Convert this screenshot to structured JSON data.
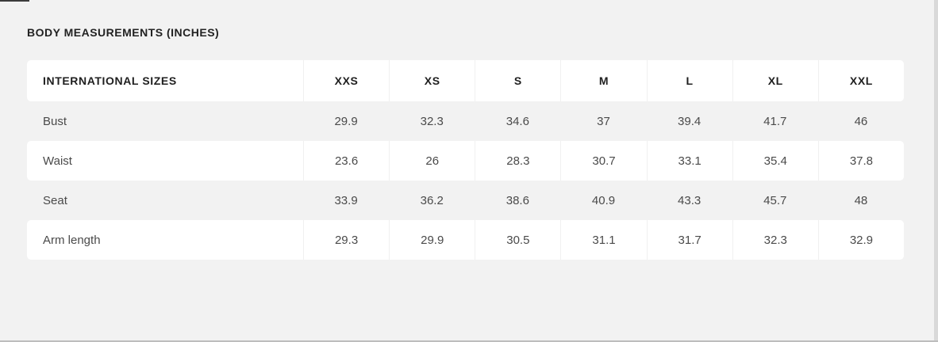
{
  "page": {
    "title": "BODY MEASUREMENTS (INCHES)"
  },
  "table": {
    "header_label": "INTERNATIONAL SIZES",
    "sizes": [
      "XXS",
      "XS",
      "S",
      "M",
      "L",
      "XL",
      "XXL"
    ],
    "rows": [
      {
        "label": "Bust",
        "values": [
          "29.9",
          "32.3",
          "34.6",
          "37",
          "39.4",
          "41.7",
          "46"
        ]
      },
      {
        "label": "Waist",
        "values": [
          "23.6",
          "26",
          "28.3",
          "30.7",
          "33.1",
          "35.4",
          "37.8"
        ]
      },
      {
        "label": "Seat",
        "values": [
          "33.9",
          "36.2",
          "38.6",
          "40.9",
          "43.3",
          "45.7",
          "48"
        ]
      },
      {
        "label": "Arm length",
        "values": [
          "29.3",
          "29.9",
          "30.5",
          "31.1",
          "31.7",
          "32.3",
          "32.9"
        ]
      }
    ]
  },
  "colors": {
    "background": "#f2f2f2",
    "row_white": "#ffffff",
    "heading_text": "#222222",
    "body_text": "#4a4a4a",
    "separator": "#f0f0f0",
    "scrollbar": "#d9d9d9"
  }
}
